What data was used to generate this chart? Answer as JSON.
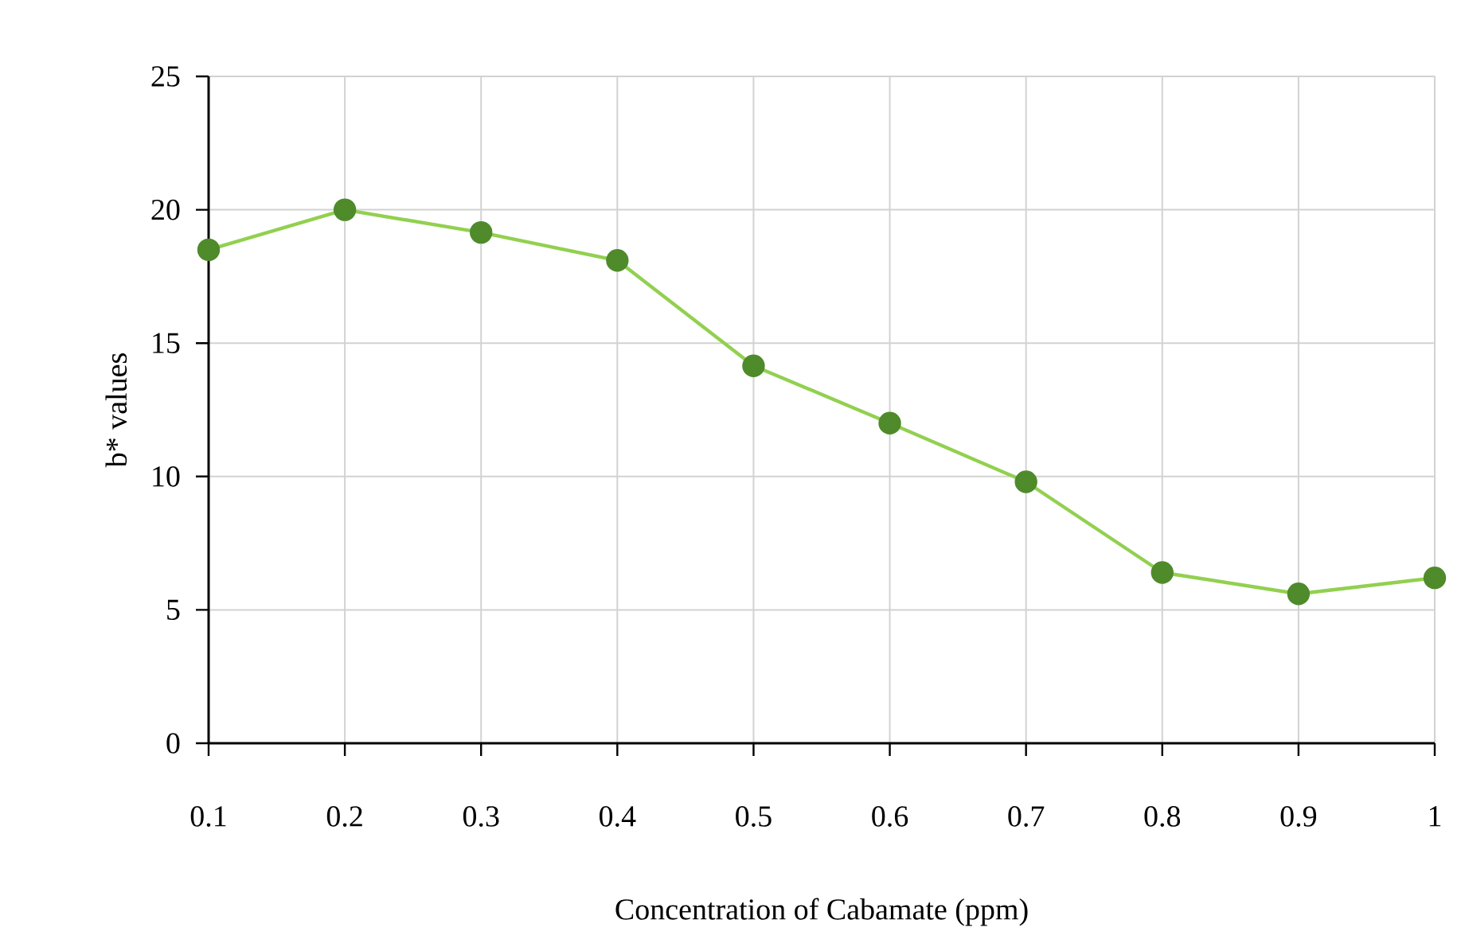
{
  "chart_data": {
    "type": "line",
    "xlabel": "Concentration of Cabamate (ppm)",
    "ylabel": "b* values",
    "x": [
      0.1,
      0.2,
      0.3,
      0.4,
      0.5,
      0.6,
      0.7,
      0.8,
      0.9,
      1
    ],
    "series": [
      {
        "color": "#92d050",
        "values": [
          18.5,
          20.0,
          19.15,
          18.1,
          14.15,
          12.0,
          9.8,
          6.4,
          5.6,
          6.2
        ]
      }
    ],
    "xlim": [
      0.1,
      1
    ],
    "xticks": [
      0.1,
      0.2,
      0.3,
      0.4,
      0.5,
      0.6,
      0.7,
      0.8,
      0.9,
      1
    ],
    "ylim": [
      0,
      25
    ],
    "yticks": [
      0,
      5,
      10,
      15,
      20,
      25
    ],
    "grid": true,
    "marker": "circle",
    "line_style": "solid"
  }
}
